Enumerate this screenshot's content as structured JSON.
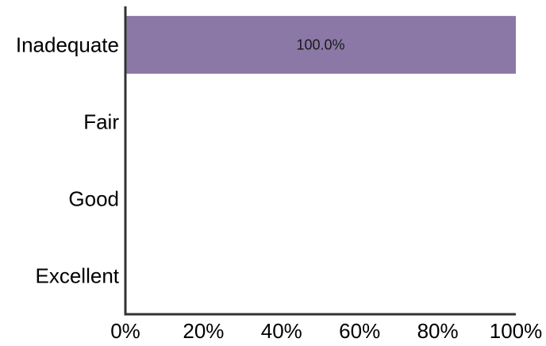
{
  "chart_data": {
    "type": "bar",
    "orientation": "horizontal",
    "categories": [
      "Inadequate",
      "Fair",
      "Good",
      "Excellent"
    ],
    "series": [
      {
        "values": [
          100.0,
          0,
          0,
          0
        ]
      }
    ],
    "data_labels": [
      "100.0%",
      "",
      "",
      ""
    ],
    "xlim": [
      0,
      100
    ],
    "xticks": [
      "0%",
      "20%",
      "40%",
      "60%",
      "80%",
      "100%"
    ],
    "title": "",
    "xlabel": "",
    "ylabel": "",
    "grid": false,
    "legend": "none",
    "colors": {
      "bar": "#8b78a6",
      "axis": "#333333"
    }
  }
}
